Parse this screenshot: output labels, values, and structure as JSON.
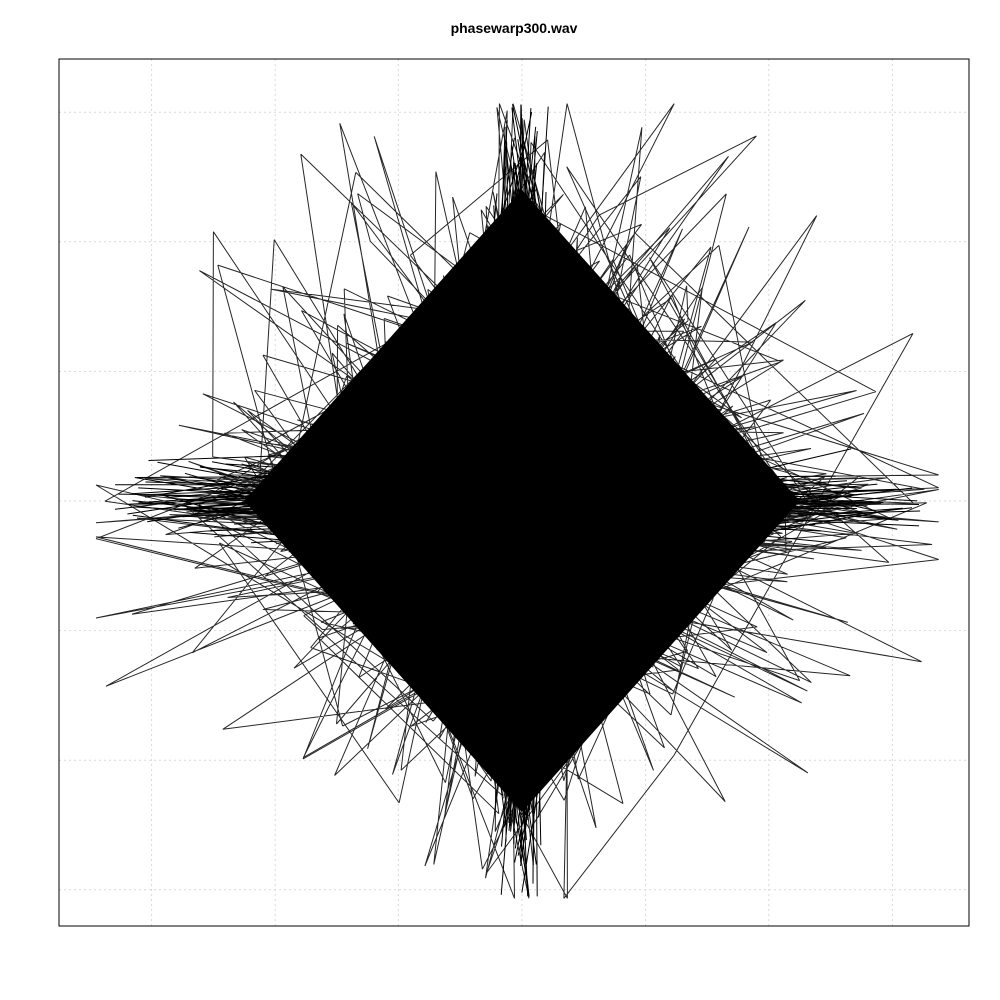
{
  "chart_data": {
    "type": "line",
    "title": "phasewarp300.wav",
    "xlabel": "",
    "ylabel": "",
    "xlim": [
      -1.0,
      1.0
    ],
    "ylim": [
      -1.0,
      1.0
    ],
    "grid": true,
    "grid_style": "dotted",
    "axes_shown": false,
    "line_color": "#000000",
    "grid_color": "#d9d9d9",
    "x_grid_values": [
      -0.8,
      -0.533,
      -0.267,
      0.0,
      0.267,
      0.533,
      0.8
    ],
    "y_grid_values": [
      -0.9,
      -0.6,
      -0.3,
      0.0,
      0.3,
      0.6,
      0.9
    ],
    "shape": "phase-space trajectory filling a diamond (star) region centered at origin",
    "extent": {
      "x_min": -0.92,
      "x_max": 0.9,
      "y_min": -0.92,
      "y_max": 0.92,
      "diamond_half_width_dense": 0.6,
      "diamond_half_height_dense": 0.72
    }
  }
}
